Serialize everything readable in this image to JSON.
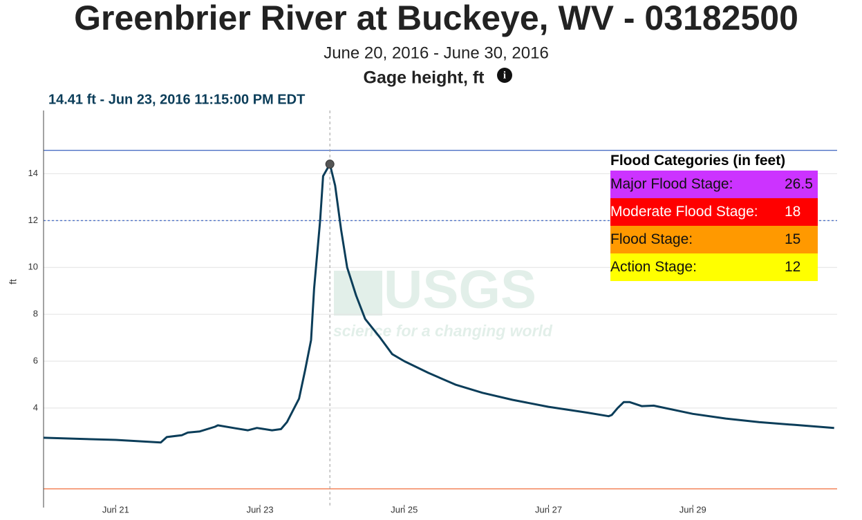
{
  "chart_data": {
    "type": "line",
    "title": "Greenbrier River at Buckeye, WV - 03182500",
    "subtitle": "June 20, 2016 - June 30, 2016",
    "series_title": "Gage height, ft",
    "ylabel": "ft",
    "hover": {
      "x": "2016-06-23T23:15",
      "y": 14.41,
      "label": "14.41 ft - Jun 23, 2016 11:15:00 PM EDT"
    },
    "x": [
      "2016-06-20T00:00",
      "2016-06-20T13:00",
      "2016-06-21T00:00",
      "2016-06-21T15:00",
      "2016-06-21T17:00",
      "2016-06-21T22:00",
      "2016-06-22T00:00",
      "2016-06-22T04:00",
      "2016-06-22T09:00",
      "2016-06-22T10:00",
      "2016-06-22T16:00",
      "2016-06-22T20:00",
      "2016-06-22T23:00",
      "2016-06-23T04:00",
      "2016-06-23T07:00",
      "2016-06-23T09:00",
      "2016-06-23T11:00",
      "2016-06-23T13:00",
      "2016-06-23T15:00",
      "2016-06-23T17:00",
      "2016-06-23T18:00",
      "2016-06-23T20:00",
      "2016-06-23T21:00",
      "2016-06-23T23:15",
      "2016-06-24T01:00",
      "2016-06-24T03:00",
      "2016-06-24T05:00",
      "2016-06-24T08:00",
      "2016-06-24T11:00",
      "2016-06-24T16:00",
      "2016-06-24T20:00",
      "2016-06-25T00:00",
      "2016-06-25T08:00",
      "2016-06-25T17:00",
      "2016-06-26T02:00",
      "2016-06-26T12:00",
      "2016-06-27T00:00",
      "2016-06-27T13:00",
      "2016-06-27T20:00",
      "2016-06-27T21:00",
      "2016-06-27T23:00",
      "2016-06-28T01:00",
      "2016-06-28T03:00",
      "2016-06-28T07:00",
      "2016-06-28T11:00",
      "2016-06-29T00:00",
      "2016-06-29T11:00",
      "2016-06-29T22:00",
      "2016-06-30T10:00",
      "2016-06-30T23:00"
    ],
    "values": [
      2.73,
      2.68,
      2.64,
      2.53,
      2.76,
      2.84,
      2.95,
      3.0,
      3.2,
      3.26,
      3.13,
      3.05,
      3.15,
      3.05,
      3.1,
      3.4,
      3.9,
      4.4,
      5.6,
      6.9,
      9.1,
      12.0,
      13.9,
      14.41,
      13.5,
      11.6,
      10.0,
      8.8,
      7.8,
      7.0,
      6.3,
      6.0,
      5.5,
      5.0,
      4.65,
      4.35,
      4.05,
      3.8,
      3.65,
      3.7,
      4.0,
      4.25,
      4.25,
      4.08,
      4.1,
      3.75,
      3.55,
      3.4,
      3.28,
      3.15
    ],
    "color": "#0b3d59",
    "xlim": [
      "2016-06-20T00:00",
      "2016-07-01T00:00"
    ],
    "xticks": [
      {
        "value": "2016-06-21T00:00",
        "label": "Jun 21"
      },
      {
        "value": "2016-06-23T00:00",
        "label": "Jun 23"
      },
      {
        "value": "2016-06-25T00:00",
        "label": "Jun 25"
      },
      {
        "value": "2016-06-27T00:00",
        "label": "Jun 27"
      },
      {
        "value": "2016-06-29T00:00",
        "label": "Jun 29"
      }
    ],
    "ylim": [
      -0.25,
      16.7
    ],
    "yticks": [
      4,
      6,
      8,
      10,
      12,
      14
    ],
    "grid": true,
    "hlines": [
      {
        "value": 15,
        "color": "#4b6fc4",
        "dash": false
      },
      {
        "value": 12,
        "color": "#4b6fc4",
        "dash": true
      },
      {
        "value": 0.55,
        "color": "#f26b3a",
        "dash": false
      }
    ],
    "watermark": {
      "logo": "USGS",
      "tagline": "science for a changing world"
    },
    "flood_table": {
      "title": "Flood Categories (in feet)",
      "rows": [
        {
          "label": "Major Flood Stage:",
          "value": 26.5,
          "color": "#cc33ff",
          "text_color": "#111"
        },
        {
          "label": "Moderate Flood Stage:",
          "value": 18,
          "color": "#ff0000",
          "text_color": "#fff"
        },
        {
          "label": "Flood Stage:",
          "value": 15,
          "color": "#ff9900",
          "text_color": "#111"
        },
        {
          "label": "Action Stage:",
          "value": 12,
          "color": "#ffff00",
          "text_color": "#111"
        }
      ]
    }
  }
}
